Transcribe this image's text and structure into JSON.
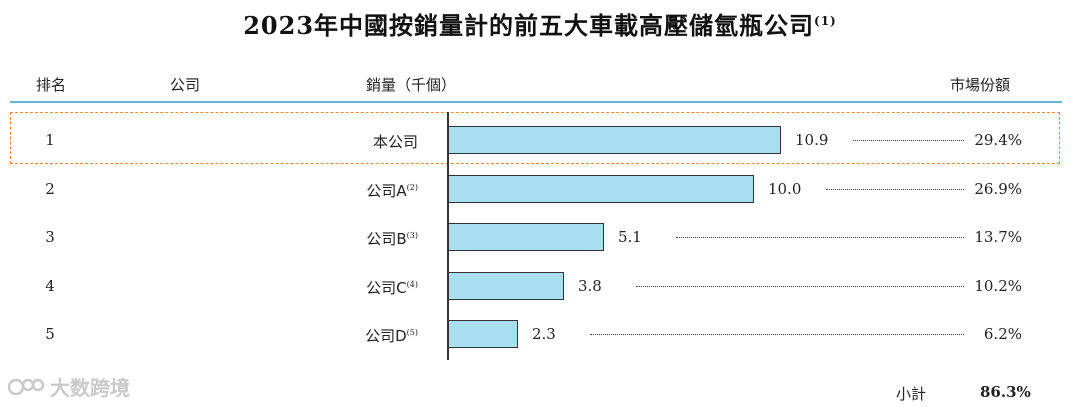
{
  "title": "2023年中國按銷量計的前五大車載高壓儲氫瓶公司",
  "title_note": "(1)",
  "headers": {
    "rank": "排名",
    "company": "公司",
    "sales": "銷量（千個）",
    "share": "市場份額"
  },
  "rows": [
    {
      "rank": "1",
      "company": "本公司",
      "note": "",
      "value": "10.9",
      "share": "29.4%"
    },
    {
      "rank": "2",
      "company": "公司A",
      "note": "(2)",
      "value": "10.0",
      "share": "26.9%"
    },
    {
      "rank": "3",
      "company": "公司B",
      "note": "(3)",
      "value": "5.1",
      "share": "13.7%"
    },
    {
      "rank": "4",
      "company": "公司C",
      "note": "(4)",
      "value": "3.8",
      "share": "10.2%"
    },
    {
      "rank": "5",
      "company": "公司D",
      "note": "(5)",
      "value": "2.3",
      "share": "6.2%"
    }
  ],
  "subtotal_label": "小計",
  "subtotal_value": "86.3%",
  "watermark": "大数跨境",
  "colors": {
    "bar_fill": "#a7def0",
    "header_line": "#5fb9d6",
    "highlight_border": "#e8892f"
  },
  "chart_data": {
    "type": "bar",
    "orientation": "horizontal",
    "title": "2023年中國按銷量計的前五大車載高壓儲氫瓶公司",
    "ylabel": "銷量（千個）",
    "categories": [
      "本公司",
      "公司A",
      "公司B",
      "公司C",
      "公司D"
    ],
    "values": [
      10.9,
      10.0,
      5.1,
      3.8,
      2.3
    ],
    "market_share": [
      "29.4%",
      "26.9%",
      "13.7%",
      "10.2%",
      "6.2%"
    ],
    "xlim": [
      0,
      10.9
    ],
    "grid": false,
    "highlighted_category": "本公司"
  }
}
